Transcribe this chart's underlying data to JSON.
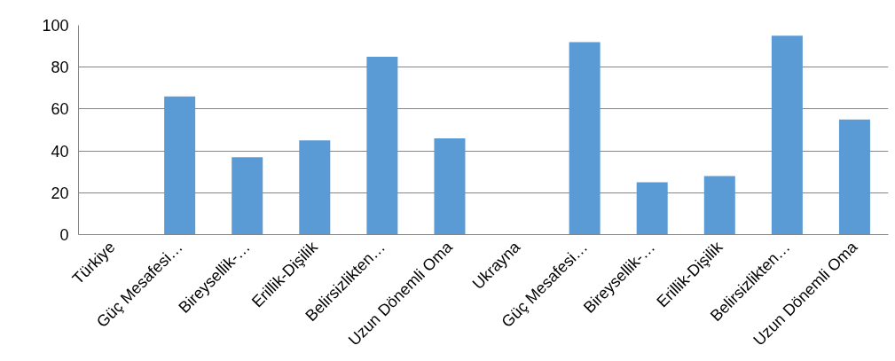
{
  "chart_data": {
    "type": "bar",
    "categories": [
      "Türkiye",
      "Güç Mesafesi…",
      "Bireysellik-…",
      "Erillik-Dişilik",
      "Belirsizlikten…",
      "Uzun Dönemli Oma",
      "Ukrayna",
      "Güç Mesafesi…",
      "Bireysellik-…",
      "Erillik-Dişilik",
      "Belirsizlikten…",
      "Uzun Dönemli Oma"
    ],
    "values": [
      null,
      66,
      37,
      45,
      85,
      46,
      null,
      92,
      25,
      28,
      95,
      55
    ],
    "color": "#5b9bd5",
    "ylim": [
      0,
      100
    ],
    "yticks": [
      0,
      20,
      40,
      60,
      80,
      100
    ],
    "grid": "y"
  }
}
